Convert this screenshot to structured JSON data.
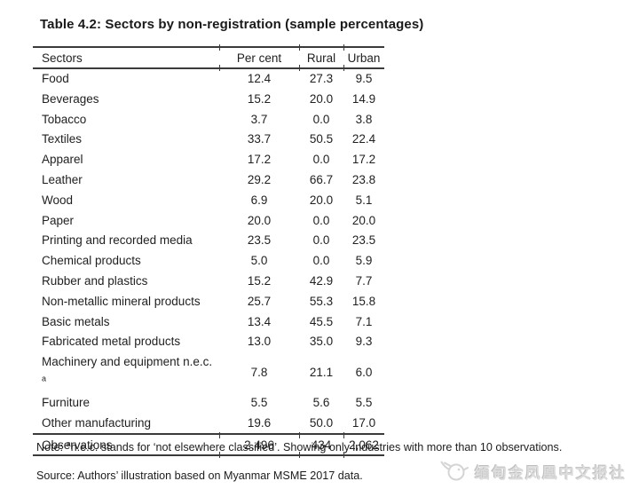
{
  "title": "Table 4.2: Sectors by non-registration (sample percentages)",
  "table": {
    "headers": [
      "Sectors",
      "Per cent",
      "Rural",
      "Urban"
    ],
    "rows": [
      {
        "sector": "Food",
        "per_cent": "12.4",
        "rural": "27.3",
        "urban": "9.5"
      },
      {
        "sector": "Beverages",
        "per_cent": "15.2",
        "rural": "20.0",
        "urban": "14.9"
      },
      {
        "sector": "Tobacco",
        "per_cent": "3.7",
        "rural": "0.0",
        "urban": "3.8"
      },
      {
        "sector": "Textiles",
        "per_cent": "33.7",
        "rural": "50.5",
        "urban": "22.4"
      },
      {
        "sector": "Apparel",
        "per_cent": "17.2",
        "rural": "0.0",
        "urban": "17.2"
      },
      {
        "sector": "Leather",
        "per_cent": "29.2",
        "rural": "66.7",
        "urban": "23.8"
      },
      {
        "sector": "Wood",
        "per_cent": "6.9",
        "rural": "20.0",
        "urban": "5.1"
      },
      {
        "sector": "Paper",
        "per_cent": "20.0",
        "rural": "0.0",
        "urban": "20.0"
      },
      {
        "sector": "Printing and recorded media",
        "per_cent": "23.5",
        "rural": "0.0",
        "urban": "23.5"
      },
      {
        "sector": "Chemical products",
        "per_cent": "5.0",
        "rural": "0.0",
        "urban": "5.9"
      },
      {
        "sector": "Rubber and plastics",
        "per_cent": "15.2",
        "rural": "42.9",
        "urban": "7.7"
      },
      {
        "sector": "Non-metallic mineral products",
        "per_cent": "25.7",
        "rural": "55.3",
        "urban": "15.8"
      },
      {
        "sector": "Basic metals",
        "per_cent": "13.4",
        "rural": "45.5",
        "urban": "7.1"
      },
      {
        "sector": "Fabricated metal products",
        "per_cent": "13.0",
        "rural": "35.0",
        "urban": "9.3"
      },
      {
        "sector": "Machinery and equipment n.e.c.",
        "sup": "a",
        "per_cent": "7.8",
        "rural": "21.1",
        "urban": "6.0"
      },
      {
        "sector": "Furniture",
        "per_cent": "5.5",
        "rural": "5.6",
        "urban": "5.5"
      },
      {
        "sector": "Other manufacturing",
        "per_cent": "19.6",
        "rural": "50.0",
        "urban": "17.0"
      }
    ],
    "observations": {
      "label": "Observations",
      "per_cent": "2,496",
      "rural": "434",
      "urban": "2,062"
    }
  },
  "note": {
    "prefix": "Note:",
    "superscript": "a",
    "text": "n.e.c. stands for ‘not elsewhere classified’. Showing only industries with more than 10 observations."
  },
  "source": "Source: Authors’ illustration based on Myanmar MSME 2017 data.",
  "watermark": {
    "text": "缅甸金凤凰中文报社",
    "icon": "phoenix-logo-icon"
  },
  "colors": {
    "text": "#1f1f1f",
    "rule": "#3b3b3b",
    "watermark": "#dcdcdc"
  }
}
